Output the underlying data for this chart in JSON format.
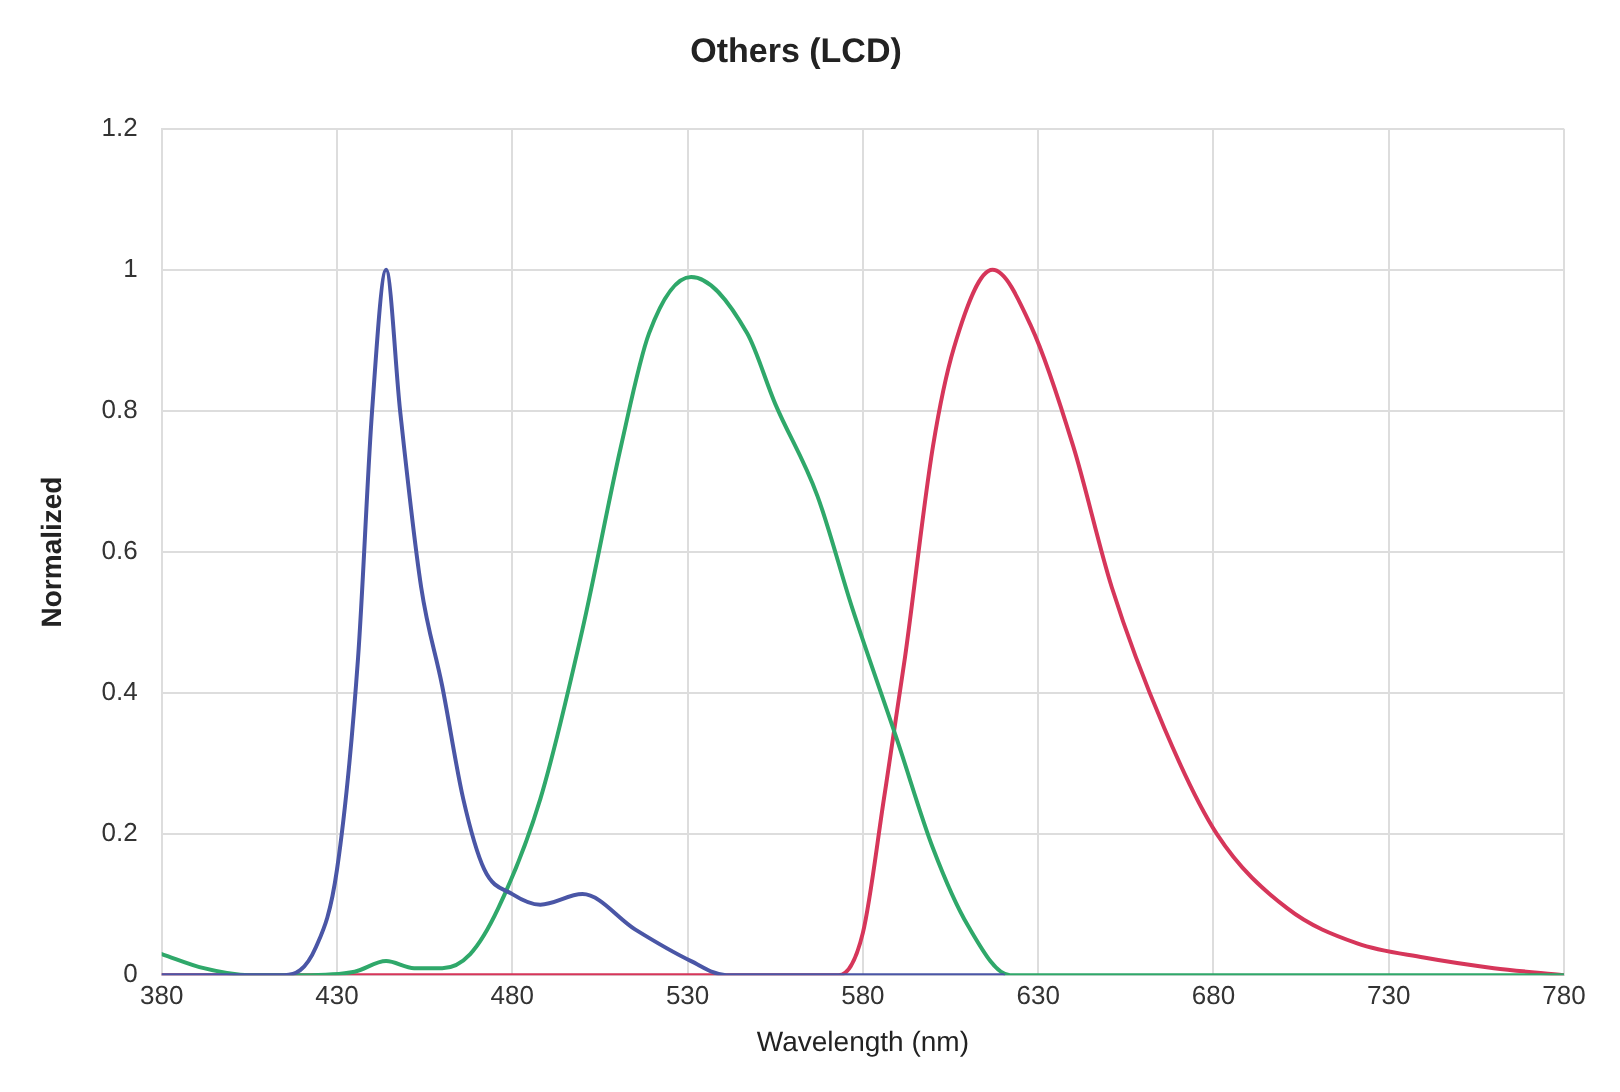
{
  "chart_data": {
    "type": "line",
    "title": "Others (LCD)",
    "xlabel": "Wavelength (nm)",
    "ylabel": "Normalized",
    "xlim": [
      380,
      780
    ],
    "xticks": [
      380,
      430,
      480,
      530,
      580,
      630,
      680,
      730,
      780
    ],
    "ylim": [
      0,
      1.2
    ],
    "yticks": [
      0,
      0.2,
      0.4,
      0.6,
      0.8,
      1,
      1.2
    ],
    "grid": true,
    "legend": false,
    "marker": "none",
    "line_style": "solid",
    "series": [
      {
        "color": "#4a56a6",
        "x": [
          380,
          400,
          415,
          424,
          430,
          436,
          440,
          444,
          448,
          454,
          460,
          466,
          472,
          480,
          488,
          500,
          515,
          531,
          541,
          560,
          600,
          620
        ],
        "values": [
          0,
          0,
          0,
          0.04,
          0.15,
          0.45,
          0.8,
          1,
          0.8,
          0.55,
          0.41,
          0.25,
          0.15,
          0.115,
          0.1,
          0.115,
          0.065,
          0.02,
          0,
          0,
          0,
          0
        ]
      },
      {
        "color": "#2fa86a",
        "x": [
          380,
          392,
          405,
          420,
          435,
          444,
          452,
          460,
          468,
          476,
          488,
          500,
          511,
          519,
          531,
          547,
          555,
          567,
          577,
          590,
          600,
          610,
          622,
          660,
          720,
          780
        ],
        "values": [
          0.03,
          0.01,
          0,
          0,
          0.005,
          0.02,
          0.01,
          0.01,
          0.03,
          0.095,
          0.25,
          0.49,
          0.75,
          0.91,
          0.99,
          0.91,
          0.81,
          0.68,
          0.52,
          0.33,
          0.18,
          0.07,
          0,
          0,
          0,
          0
        ]
      },
      {
        "color": "#d6365a",
        "x": [
          380,
          450,
          520,
          573,
          580,
          586,
          592,
          600,
          606,
          617,
          628,
          640,
          651,
          666,
          681,
          701,
          721,
          740,
          760,
          780
        ],
        "values": [
          0,
          0,
          0,
          0,
          0.06,
          0.25,
          0.45,
          0.75,
          0.89,
          1,
          0.92,
          0.75,
          0.55,
          0.35,
          0.2,
          0.095,
          0.045,
          0.025,
          0.01,
          0
        ]
      }
    ]
  }
}
